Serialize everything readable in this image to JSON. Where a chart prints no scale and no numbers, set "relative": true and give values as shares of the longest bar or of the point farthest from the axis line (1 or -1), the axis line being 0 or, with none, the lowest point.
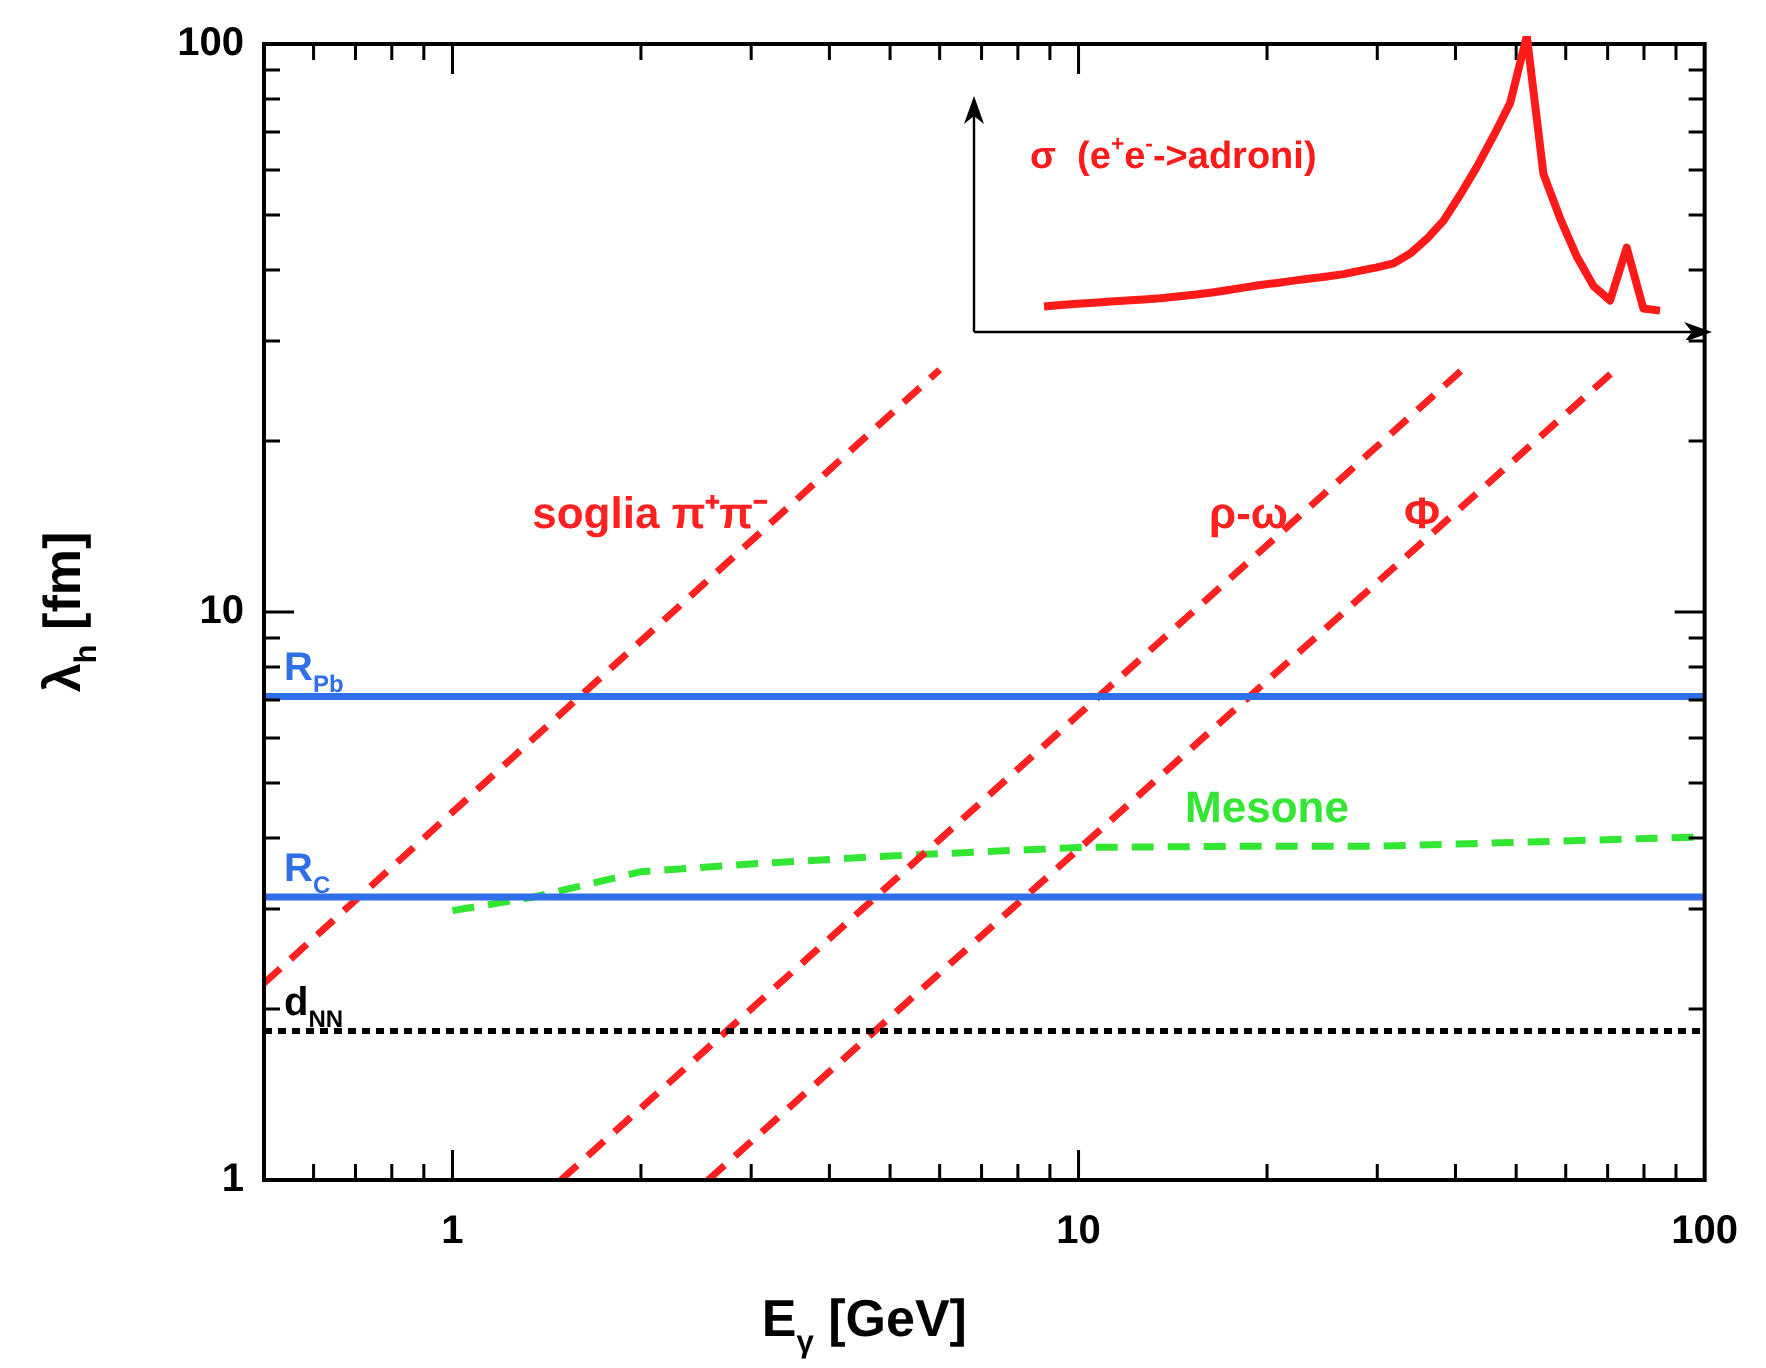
{
  "chart_data": [
    {
      "type": "line",
      "xlabel": "E$_{γ}$ [GeV]",
      "ylabel": "λ$_{h}$ [fm]",
      "log": "xy",
      "xlim": [
        0.5,
        100
      ],
      "ylim": [
        1,
        100
      ],
      "xticks": [
        {
          "value": 0.6,
          "label": null
        },
        {
          "value": 0.7,
          "label": null
        },
        {
          "value": 0.8,
          "label": null
        },
        {
          "value": 0.9,
          "label": null
        },
        1,
        {
          "value": 2,
          "label": null
        },
        {
          "value": 3,
          "label": null
        },
        {
          "value": 4,
          "label": null
        },
        {
          "value": 5,
          "label": null
        },
        {
          "value": 6,
          "label": null
        },
        {
          "value": 7,
          "label": null
        },
        {
          "value": 8,
          "label": null
        },
        {
          "value": 9,
          "label": null
        },
        10,
        {
          "value": 20,
          "label": null
        },
        {
          "value": 30,
          "label": null
        },
        {
          "value": 40,
          "label": null
        },
        {
          "value": 50,
          "label": null
        },
        {
          "value": 60,
          "label": null
        },
        {
          "value": 70,
          "label": null
        },
        {
          "value": 80,
          "label": null
        },
        {
          "value": 90,
          "label": null
        },
        100
      ],
      "yticks": [
        1,
        {
          "value": 2,
          "label": null
        },
        {
          "value": 3,
          "label": null
        },
        {
          "value": 4,
          "label": null
        },
        {
          "value": 5,
          "label": null
        },
        {
          "value": 6,
          "label": null
        },
        {
          "value": 7,
          "label": null
        },
        {
          "value": 8,
          "label": null
        },
        {
          "value": 9,
          "label": null
        },
        10,
        {
          "value": 20,
          "label": null
        },
        {
          "value": 30,
          "label": null
        },
        {
          "value": 40,
          "label": null
        },
        {
          "value": 50,
          "label": null
        },
        {
          "value": 60,
          "label": null
        },
        {
          "value": 70,
          "label": null
        },
        {
          "value": 80,
          "label": null
        },
        {
          "value": 90,
          "label": null
        },
        100
      ],
      "grid": false,
      "legend": false,
      "line_style": "dashed",
      "series": [
        {
          "name": "soglia π⁺π⁻",
          "color": "#ff2020",
          "x": [
            0.5,
            6
          ],
          "values": [
            2.22,
            26.7
          ]
        },
        {
          "name": "ρ-ω",
          "color": "#ff2020",
          "x": [
            1.49,
            41
          ],
          "values": [
            1,
            26.7
          ]
        },
        {
          "name": "Φ",
          "color": "#ff2020",
          "x": [
            2.56,
            72
          ],
          "values": [
            1,
            26.7
          ]
        },
        {
          "name": "Mesone",
          "color": "#33e633",
          "x": [
            1,
            1.35,
            2,
            3,
            5,
            10,
            20,
            30,
            50,
            100
          ],
          "values": [
            2.98,
            3.15,
            3.49,
            3.6,
            3.72,
            3.85,
            3.87,
            3.87,
            3.93,
            4.02
          ]
        }
      ],
      "ref_lines": [
        {
          "axis": "y",
          "value": 7.1,
          "label": "R$_{Pb}$",
          "color": "#2f6fe8",
          "line_style": "solid"
        },
        {
          "axis": "y",
          "value": 3.15,
          "label": "R$_{C}$",
          "color": "#2f6fe8",
          "line_style": "solid"
        },
        {
          "axis": "y",
          "value": 1.83,
          "label": "d$_{NN}$",
          "color": "#000000",
          "line_style": "dotted"
        }
      ]
    },
    {
      "type": "line",
      "title": "σ  (e$^{+}$e$^{-}$->adroni)",
      "relative": true,
      "line_style": "solid",
      "categories": [
        null,
        null,
        null,
        null,
        null,
        null,
        null,
        null,
        null,
        null,
        null,
        null,
        null,
        null,
        null,
        null,
        null,
        null,
        null,
        null,
        null,
        null,
        null,
        null,
        null,
        null,
        null,
        null,
        null,
        null,
        null,
        null,
        null,
        null,
        null,
        null,
        null,
        null
      ],
      "series": [
        {
          "color": "#ff1a1a",
          "values": [
            0.08,
            0.085,
            0.089,
            0.093,
            0.097,
            0.1,
            0.104,
            0.108,
            0.114,
            0.12,
            0.127,
            0.135,
            0.144,
            0.153,
            0.16,
            0.168,
            0.175,
            0.182,
            0.19,
            0.202,
            0.213,
            0.227,
            0.26,
            0.31,
            0.372,
            0.46,
            0.555,
            0.66,
            0.772,
            1,
            0.53,
            0.38,
            0.25,
            0.15,
            0.1,
            0.28,
            0.073,
            0.066
          ]
        }
      ]
    }
  ]
}
